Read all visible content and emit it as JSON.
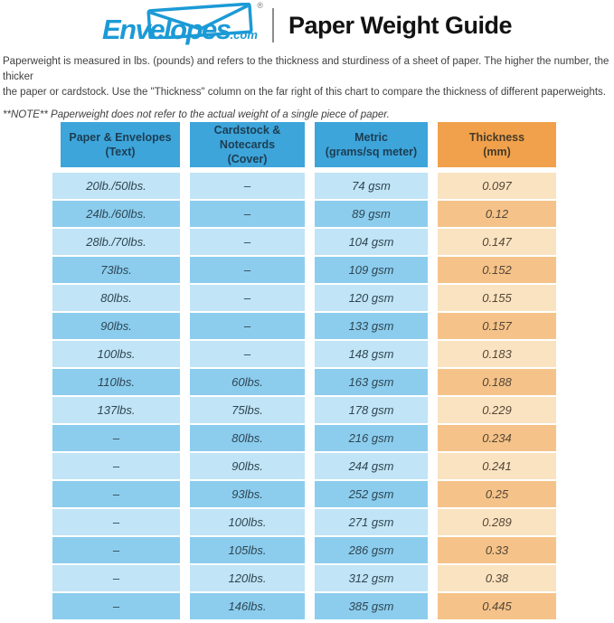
{
  "brand": {
    "logo_text": "Envelopes",
    "logo_suffix": ".com",
    "registered_mark": "®",
    "logo_color": "#1b9ad6"
  },
  "header": {
    "title": "Paper Weight Guide"
  },
  "intro": {
    "line1": "Paperweight is measured in lbs. (pounds) and refers to the thickness and sturdiness of a sheet of paper. The higher the number, the thicker",
    "line2": "the paper or cardstock. Use the \"Thickness\" column on the far right of this chart to compare the thickness of different paperweights.",
    "note": "**NOTE** Paperweight does not refer to the actual weight of a single piece of paper."
  },
  "table": {
    "headers": [
      {
        "title": "Paper & Envelopes",
        "subtitle": "(Text)"
      },
      {
        "title": "Cardstock & Notecards",
        "subtitle": "(Cover)"
      },
      {
        "title": "Metric",
        "subtitle": "(grams/sq meter)"
      },
      {
        "title": "Thickness",
        "subtitle": "(mm)"
      }
    ],
    "rows": [
      [
        "20lb./50lbs.",
        "–",
        "74 gsm",
        "0.097"
      ],
      [
        "24lb./60lbs.",
        "–",
        "89 gsm",
        "0.12"
      ],
      [
        "28lb./70lbs.",
        "–",
        "104 gsm",
        "0.147"
      ],
      [
        "73lbs.",
        "–",
        "109 gsm",
        "0.152"
      ],
      [
        "80lbs.",
        "–",
        "120 gsm",
        "0.155"
      ],
      [
        "90lbs.",
        "–",
        "133 gsm",
        "0.157"
      ],
      [
        "100lbs.",
        "–",
        "148 gsm",
        "0.183"
      ],
      [
        "110lbs.",
        "60lbs.",
        "163 gsm",
        "0.188"
      ],
      [
        "137lbs.",
        "75lbs.",
        "178 gsm",
        "0.229"
      ],
      [
        "–",
        "80lbs.",
        "216 gsm",
        "0.234"
      ],
      [
        "–",
        "90lbs.",
        "244 gsm",
        "0.241"
      ],
      [
        "–",
        "93lbs.",
        "252 gsm",
        "0.25"
      ],
      [
        "–",
        "100lbs.",
        "271 gsm",
        "0.289"
      ],
      [
        "–",
        "105lbs.",
        "286 gsm",
        "0.33"
      ],
      [
        "–",
        "120lbs.",
        "312 gsm",
        "0.38"
      ],
      [
        "–",
        "146lbs.",
        "385 gsm",
        "0.445"
      ]
    ]
  },
  "colors": {
    "header_blue": "#3da5da",
    "header_orange": "#f1a14b",
    "row_blue_light": "#c1e4f6",
    "row_blue_dark": "#8ccdee",
    "row_orange_light": "#fae3c1",
    "row_orange_dark": "#f5c389",
    "logo_blue": "#1b9ad6",
    "cell_text_blue": "#2e4653",
    "cell_text_orange": "#554636"
  },
  "chart_data": {
    "type": "table",
    "title": "Paper Weight Guide",
    "columns": [
      "Paper & Envelopes (Text)",
      "Cardstock & Notecards (Cover)",
      "Metric (grams/sq meter)",
      "Thickness (mm)"
    ],
    "rows": [
      [
        "20lb./50lbs.",
        null,
        "74 gsm",
        0.097
      ],
      [
        "24lb./60lbs.",
        null,
        "89 gsm",
        0.12
      ],
      [
        "28lb./70lbs.",
        null,
        "104 gsm",
        0.147
      ],
      [
        "73lbs.",
        null,
        "109 gsm",
        0.152
      ],
      [
        "80lbs.",
        null,
        "120 gsm",
        0.155
      ],
      [
        "90lbs.",
        null,
        "133 gsm",
        0.157
      ],
      [
        "100lbs.",
        null,
        "148 gsm",
        0.183
      ],
      [
        "110lbs.",
        "60lbs.",
        "163 gsm",
        0.188
      ],
      [
        "137lbs.",
        "75lbs.",
        "178 gsm",
        0.229
      ],
      [
        null,
        "80lbs.",
        "216 gsm",
        0.234
      ],
      [
        null,
        "90lbs.",
        "244 gsm",
        0.241
      ],
      [
        null,
        "93lbs.",
        "252 gsm",
        0.25
      ],
      [
        null,
        "100lbs.",
        "271 gsm",
        0.289
      ],
      [
        null,
        "105lbs.",
        "286 gsm",
        0.33
      ],
      [
        null,
        "120lbs.",
        "312 gsm",
        0.38
      ],
      [
        null,
        "146lbs.",
        "385 gsm",
        0.445
      ]
    ]
  }
}
